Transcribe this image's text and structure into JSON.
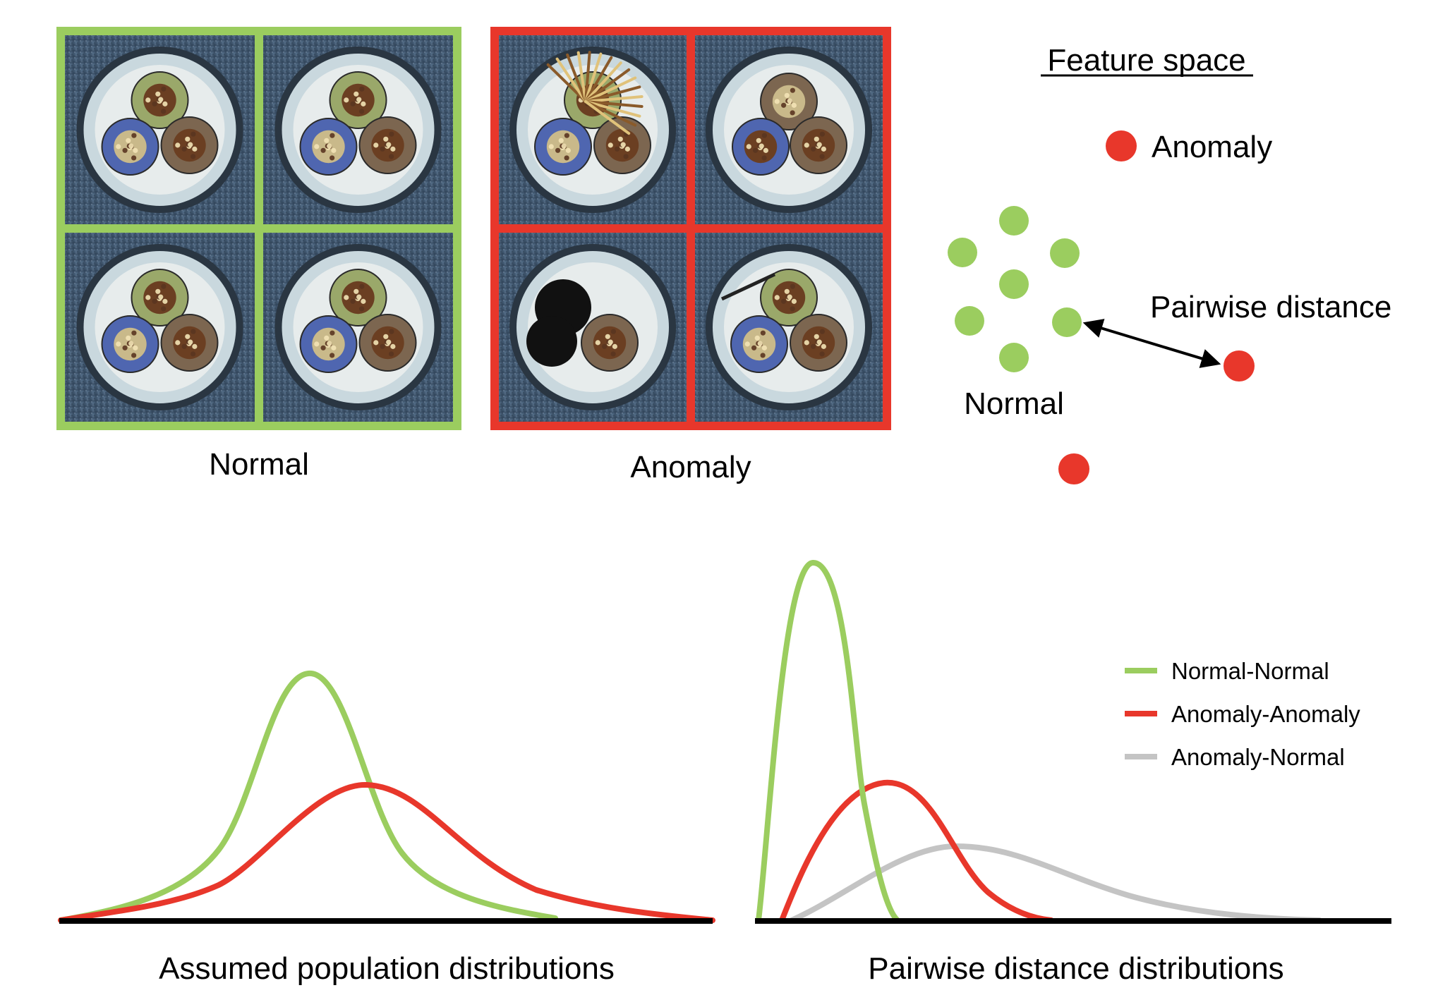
{
  "colors": {
    "normal": "#9bcd5f",
    "anomaly": "#e8372b",
    "cross": "#c4c4c4",
    "axis": "#000000",
    "tile_bg": "#3f5770"
  },
  "panels": {
    "normal_grid": {
      "caption": "Normal",
      "border_color": "#9bcd5f"
    },
    "anomaly_grid": {
      "caption": "Anomaly",
      "border_color": "#e8372b"
    }
  },
  "feature_space": {
    "title": "Feature space",
    "anomaly_legend_label": "Anomaly",
    "normal_label": "Normal",
    "pairwise_label": "Pairwise distance"
  },
  "bottom": {
    "left_caption": "Assumed population distributions",
    "right_caption": "Pairwise distance distributions",
    "legend": [
      {
        "label": "Normal-Normal",
        "color": "#9bcd5f"
      },
      {
        "label": "Anomaly-Anomaly",
        "color": "#e8372b"
      },
      {
        "label": "Anomaly-Normal",
        "color": "#c4c4c4"
      }
    ]
  },
  "cable_tiles": {
    "normal": [
      {
        "state": "intact"
      },
      {
        "state": "intact"
      },
      {
        "state": "intact"
      },
      {
        "state": "intact"
      }
    ],
    "anomaly": [
      {
        "state": "frayed-wires"
      },
      {
        "state": "swapped-colors"
      },
      {
        "state": "missing-cables"
      },
      {
        "state": "cut-insulation"
      }
    ]
  }
}
